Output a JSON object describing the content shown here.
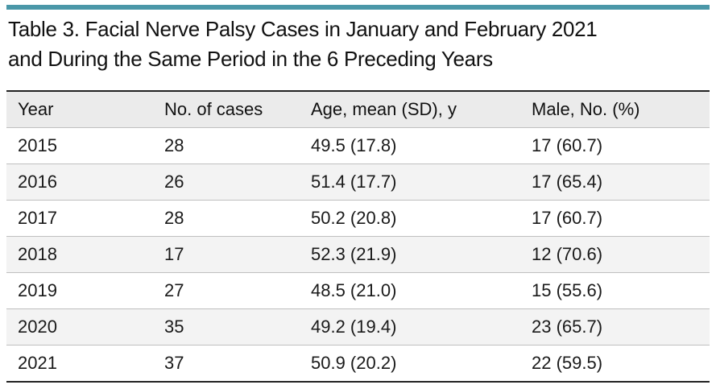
{
  "caption": {
    "line1": "Table 3. Facial Nerve Palsy Cases in January and February 2021",
    "line2": "and During the Same Period in the 6 Preceding Years"
  },
  "table": {
    "headers": [
      "Year",
      "No. of cases",
      "Age, mean (SD), y",
      "Male, No. (%)"
    ],
    "rows": [
      [
        "2015",
        "28",
        "49.5 (17.8)",
        "17 (60.7)"
      ],
      [
        "2016",
        "26",
        "51.4 (17.7)",
        "17 (65.4)"
      ],
      [
        "2017",
        "28",
        "50.2 (20.8)",
        "17 (60.7)"
      ],
      [
        "2018",
        "17",
        "52.3 (21.9)",
        "12 (70.6)"
      ],
      [
        "2019",
        "27",
        "48.5 (21.0)",
        "15 (55.6)"
      ],
      [
        "2020",
        "35",
        "49.2 (19.4)",
        "23 (65.7)"
      ],
      [
        "2021",
        "37",
        "50.9 (20.2)",
        "22 (59.5)"
      ]
    ]
  },
  "colors": {
    "accent_rule": "#4a97a8",
    "header_bg": "#ebebeb"
  }
}
